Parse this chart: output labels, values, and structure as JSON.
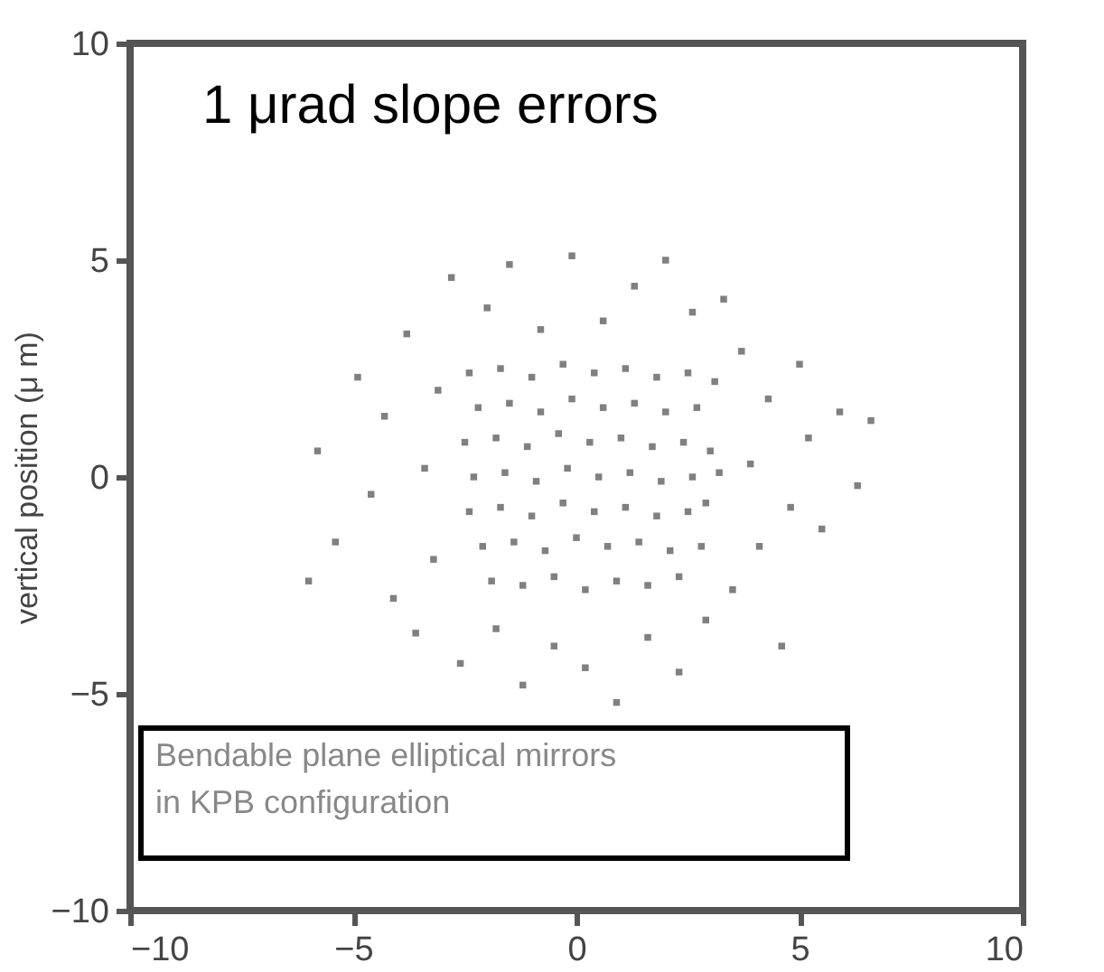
{
  "chart_data": {
    "type": "scatter",
    "title": "1 μrad slope errors",
    "ylabel": "vertical position (μ m)",
    "annotations": [
      "Bendable plane elliptical mirrors\nin KPB configuration"
    ],
    "xlim": [
      -10,
      10
    ],
    "xticks": [
      -10,
      -5,
      0,
      5,
      10
    ],
    "ylim": [
      -10,
      10
    ],
    "yticks": [
      -10,
      -5,
      0,
      5,
      10
    ],
    "grid": false,
    "marker": "square",
    "series": [
      {
        "color": "#808080",
        "x": [
          -2.4,
          -1.7,
          -1.0,
          -0.3,
          0.4,
          1.1,
          1.8,
          2.5,
          3.1,
          -2.2,
          -1.5,
          -0.8,
          -0.1,
          0.6,
          1.3,
          2.0,
          2.7,
          -2.5,
          -1.8,
          -1.1,
          -0.4,
          0.3,
          1.0,
          1.7,
          2.4,
          3.0,
          -2.3,
          -1.6,
          -0.9,
          -0.2,
          0.5,
          1.2,
          1.9,
          2.6,
          3.2,
          -2.4,
          -1.7,
          -1.0,
          -0.3,
          0.4,
          1.1,
          1.8,
          2.5,
          2.9,
          -2.1,
          -1.4,
          -0.7,
          0.0,
          0.7,
          1.4,
          2.1,
          2.8,
          -1.9,
          -1.2,
          -0.5,
          0.2,
          0.9,
          1.6,
          2.3,
          -5.8,
          -5.4,
          -4.9,
          -4.6,
          -4.3,
          -4.1,
          -3.8,
          -3.6,
          -3.4,
          -3.2,
          -3.1,
          -2.8,
          -2.6,
          -2.0,
          -1.8,
          -1.5,
          -1.2,
          -0.8,
          -0.5,
          -0.1,
          0.2,
          0.6,
          0.9,
          1.3,
          1.6,
          2.0,
          2.3,
          2.6,
          2.9,
          3.3,
          3.5,
          3.7,
          3.9,
          4.1,
          4.3,
          4.6,
          4.8,
          5.0,
          5.2,
          5.5,
          5.9,
          6.3,
          6.6,
          -6.0
        ],
        "values": [
          2.4,
          2.5,
          2.3,
          2.6,
          2.4,
          2.5,
          2.3,
          2.4,
          2.2,
          1.6,
          1.7,
          1.5,
          1.8,
          1.6,
          1.7,
          1.5,
          1.6,
          0.8,
          0.9,
          0.7,
          1.0,
          0.8,
          0.9,
          0.7,
          0.8,
          0.6,
          0.0,
          0.1,
          -0.1,
          0.2,
          0.0,
          0.1,
          -0.1,
          0.0,
          0.1,
          -0.8,
          -0.7,
          -0.9,
          -0.6,
          -0.8,
          -0.7,
          -0.9,
          -0.8,
          -0.6,
          -1.6,
          -1.5,
          -1.7,
          -1.4,
          -1.6,
          -1.5,
          -1.7,
          -1.6,
          -2.4,
          -2.5,
          -2.3,
          -2.6,
          -2.4,
          -2.5,
          -2.3,
          0.6,
          -1.5,
          2.3,
          -0.4,
          1.4,
          -2.8,
          3.3,
          -3.6,
          0.2,
          -1.9,
          2.0,
          4.6,
          -4.3,
          3.9,
          -3.5,
          4.9,
          -4.8,
          3.4,
          -3.9,
          5.1,
          -4.4,
          3.6,
          -5.2,
          4.4,
          -3.7,
          5.0,
          -4.5,
          3.8,
          -3.3,
          4.1,
          -2.6,
          2.9,
          0.3,
          -1.6,
          1.8,
          -3.9,
          -0.7,
          2.6,
          0.9,
          -1.2,
          1.5,
          -0.2,
          1.3,
          -2.4
        ]
      }
    ]
  }
}
